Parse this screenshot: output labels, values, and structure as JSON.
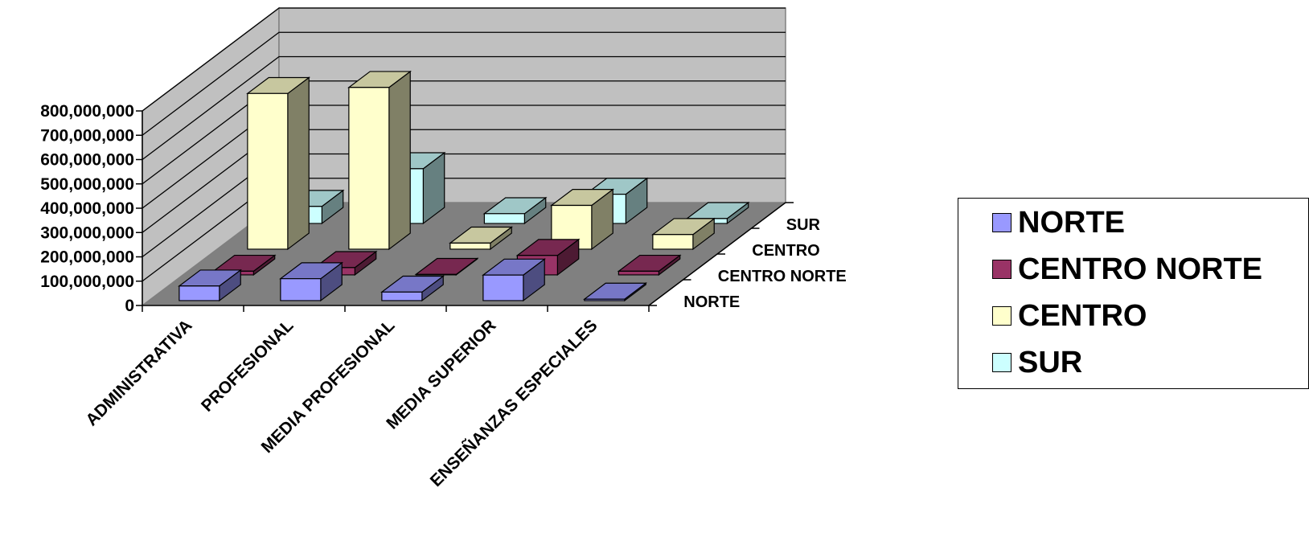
{
  "chart_data": {
    "type": "bar",
    "subtype": "3d-clustered-depth",
    "categories": [
      "ADMINISTRATIVA",
      "PROFESIONAL",
      "MEDIA PROFESIONAL",
      "MEDIA SUPERIOR",
      "ENSEÑANZAS ESPECIALES"
    ],
    "series": [
      {
        "name": "NORTE",
        "values": [
          60000000,
          90000000,
          35000000,
          105000000,
          6000000
        ],
        "color": "#9999ff"
      },
      {
        "name": "CENTRO NORTE",
        "values": [
          15000000,
          30000000,
          2000000,
          80000000,
          15000000
        ],
        "color": "#993366"
      },
      {
        "name": "CENTRO",
        "values": [
          640000000,
          665000000,
          25000000,
          180000000,
          60000000
        ],
        "color": "#ffffcc"
      },
      {
        "name": "SUR",
        "values": [
          70000000,
          225000000,
          40000000,
          120000000,
          20000000
        ],
        "color": "#ccffff"
      }
    ],
    "yticks": [
      "800,000,000",
      "700,000,000",
      "600,000,000",
      "500,000,000",
      "400,000,000",
      "300,000,000",
      "200,000,000",
      "100,000,000",
      "0"
    ],
    "ylim": [
      0,
      800000000
    ],
    "depth_labels": [
      "SUR",
      "CENTRO",
      "CENTRO NORTE",
      "NORTE"
    ],
    "legend": {
      "position": "right",
      "items": [
        "NORTE",
        "CENTRO NORTE",
        "CENTRO",
        "SUR"
      ]
    },
    "grid": true,
    "colors": {
      "wall": "#c0c0c0",
      "floor": "#808080"
    }
  }
}
